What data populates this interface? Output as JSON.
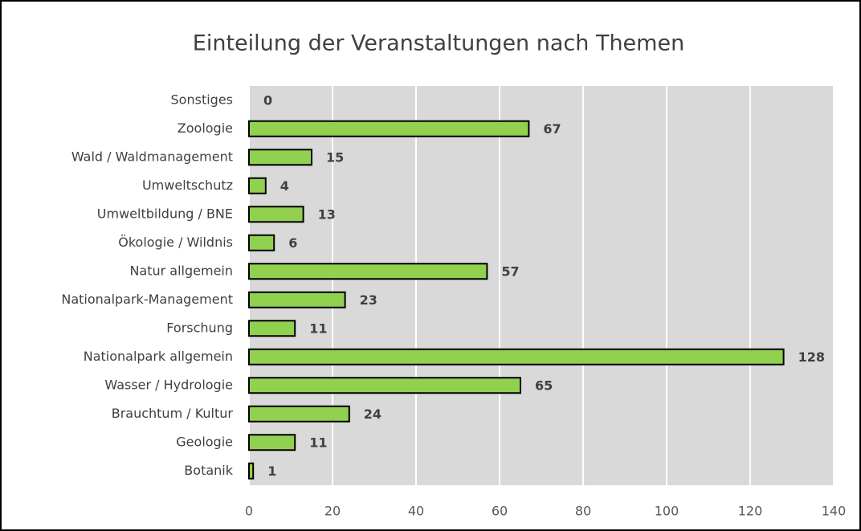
{
  "chart_data": {
    "type": "bar",
    "orientation": "horizontal",
    "title": "Einteilung der Veranstaltungen nach Themen",
    "categories": [
      "Sonstiges",
      "Zoologie",
      "Wald / Waldmanagement",
      "Umweltschutz",
      "Umweltbildung / BNE",
      "Ökologie / Wildnis",
      "Natur allgemein",
      "Nationalpark-Management",
      "Forschung",
      "Nationalpark allgemein",
      "Wasser / Hydrologie",
      "Brauchtum / Kultur",
      "Geologie",
      "Botanik"
    ],
    "values": [
      0,
      67,
      15,
      4,
      13,
      6,
      57,
      23,
      11,
      128,
      65,
      24,
      11,
      1
    ],
    "color": "#92d050",
    "xlim": [
      0,
      140
    ],
    "xticks": [
      0,
      20,
      40,
      60,
      80,
      100,
      120,
      140
    ],
    "grid": true
  }
}
